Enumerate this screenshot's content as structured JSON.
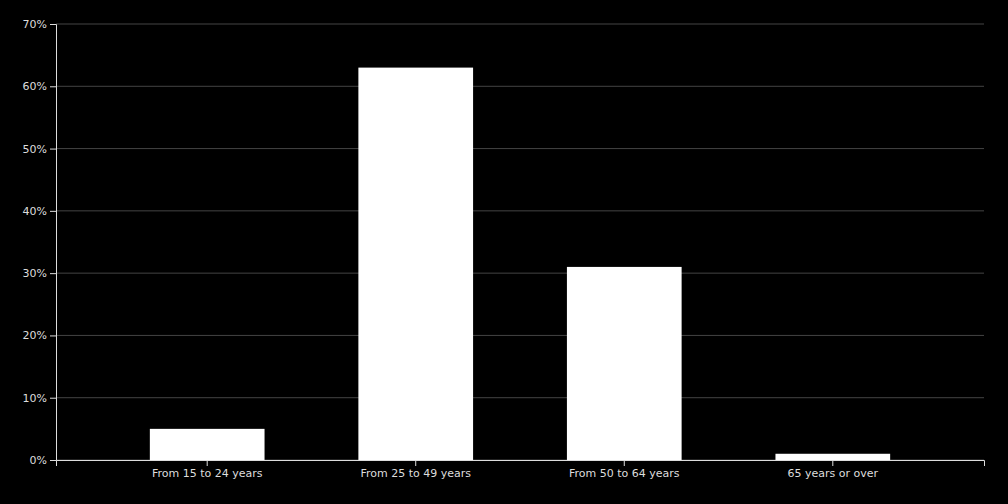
{
  "chart_data": {
    "type": "bar",
    "categories": [
      "From 15 to 24 years",
      "From 25 to 49 years",
      "From 50 to 64 years",
      "65 years or over"
    ],
    "values": [
      5,
      63,
      31,
      1
    ],
    "color": "#ffffff",
    "ylim": [
      0,
      70
    ],
    "yticks": [
      {
        "value": 0,
        "label": "0%"
      },
      {
        "value": 10,
        "label": "10%"
      },
      {
        "value": 20,
        "label": "20%"
      },
      {
        "value": 30,
        "label": "30%"
      },
      {
        "value": 40,
        "label": "40%"
      },
      {
        "value": 50,
        "label": "50%"
      },
      {
        "value": 60,
        "label": "60%"
      },
      {
        "value": 70,
        "label": "70%"
      }
    ],
    "grid": true
  }
}
